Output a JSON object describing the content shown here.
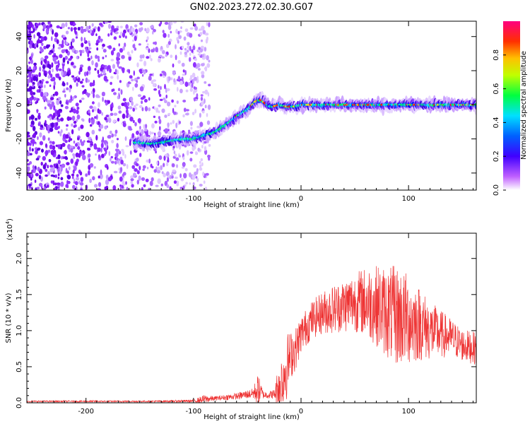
{
  "figure": {
    "title": "GN02.2023.272.02.30.G07"
  },
  "chart_data": [
    {
      "type": "heatmap",
      "xlabel": "Height of straight line (km)",
      "ylabel": "Frequency (Hz)",
      "xlim": [
        -255,
        163
      ],
      "ylim": [
        -50,
        49
      ],
      "xticks": [
        -200,
        -100,
        0,
        100
      ],
      "xtick_labels": [
        "-200",
        "-100",
        "0",
        "100"
      ],
      "yticks": [
        -40,
        -20,
        0,
        20,
        40
      ],
      "ytick_labels": [
        "-40",
        "-20",
        "0",
        "20",
        "40"
      ],
      "grid": false,
      "colorbar": {
        "label": "Normalized spectral amplitude",
        "range": [
          0,
          1
        ],
        "ticks": [
          0.0,
          0.2,
          0.4,
          0.6,
          0.8
        ],
        "tick_labels": [
          "0.0",
          "0.2",
          "0.4",
          "0.6",
          "0.8"
        ],
        "colormap": [
          "#ffffff",
          "#b000ff",
          "#0000ff",
          "#00ffff",
          "#00ff00",
          "#ffff00",
          "#ff8000",
          "#ff0000",
          "#ff0080"
        ]
      },
      "ridge": {
        "x": [
          -155,
          -140,
          -130,
          -120,
          -110,
          -100,
          -90,
          -80,
          -70,
          -60,
          -50,
          -42,
          -37,
          -33,
          -30,
          -25,
          -20,
          -15,
          -10,
          -5,
          0,
          10,
          20,
          40,
          60,
          80,
          100,
          120,
          140,
          163
        ],
        "y": [
          -22,
          -23,
          -22,
          -21,
          -20,
          -20,
          -18,
          -16,
          -12,
          -7,
          -3,
          2,
          3,
          1,
          -1,
          -1,
          0,
          -1,
          -1,
          -1,
          0,
          0,
          0,
          0,
          0,
          0,
          0,
          0,
          0,
          0
        ]
      },
      "noise_region_x_max": -85
    },
    {
      "type": "line",
      "xlabel": "Height of straight line (km)",
      "ylabel": "SNR (10 * v/v)",
      "y_multiplier": "(x10",
      "y_multiplier_exp": "4",
      "y_multiplier_close": ")",
      "xlim": [
        -255,
        163
      ],
      "ylim": [
        0,
        23500
      ],
      "xticks": [
        -200,
        -100,
        0,
        100
      ],
      "xtick_labels": [
        "-200",
        "-100",
        "0",
        "100"
      ],
      "yticks": [
        0,
        5000,
        10000,
        15000,
        20000
      ],
      "ytick_labels": [
        "0.0",
        "0.5",
        "1.0",
        "1.5",
        "2.0"
      ],
      "grid": false,
      "series": [
        {
          "color": "#ee3333",
          "x": [
            -255,
            -140,
            -100,
            -90,
            -80,
            -60,
            -45,
            -40,
            -35,
            -30,
            -25,
            -20,
            -15,
            -10,
            -5,
            0,
            10,
            20,
            30,
            40,
            50,
            60,
            70,
            80,
            90,
            100,
            110,
            120,
            130,
            140,
            150,
            163
          ],
          "mean": [
            200,
            200,
            250,
            500,
            600,
            900,
            1300,
            1800,
            1100,
            1100,
            1200,
            2500,
            4500,
            6500,
            7500,
            9500,
            11500,
            12500,
            13000,
            13500,
            14000,
            14000,
            13500,
            12500,
            12000,
            11500,
            11000,
            10000,
            9500,
            9000,
            8000,
            7500
          ],
          "spread": [
            150,
            150,
            250,
            800,
            400,
            600,
            900,
            3000,
            700,
            700,
            900,
            5000,
            7000,
            4500,
            4000,
            3500,
            3500,
            4000,
            4500,
            5000,
            5500,
            6500,
            7500,
            8500,
            9500,
            8500,
            7000,
            5500,
            4500,
            3500,
            3000,
            3000
          ]
        }
      ]
    }
  ]
}
